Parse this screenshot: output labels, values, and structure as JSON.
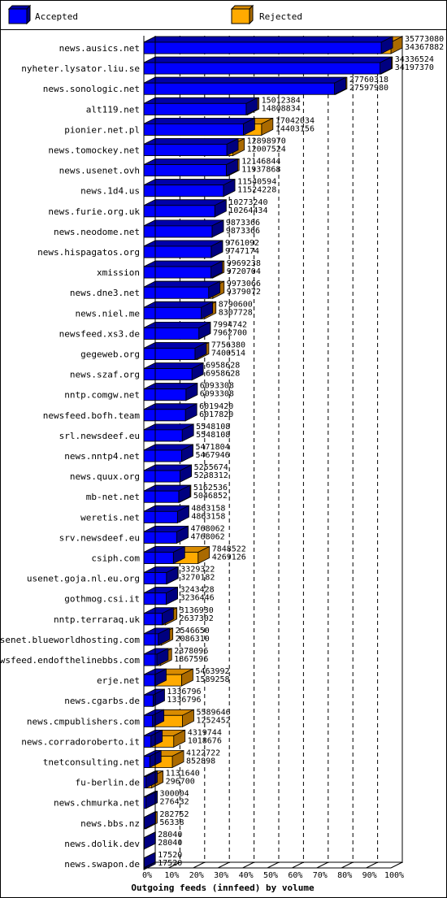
{
  "chart_data": {
    "type": "bar",
    "orientation": "horizontal",
    "stacked": false,
    "overlapping": true,
    "xlabel": "Outgoing feeds (innfeed) by volume",
    "ylabel": "",
    "title": "",
    "x_ticks": [
      "0%",
      "10%",
      "20%",
      "30%",
      "40%",
      "50%",
      "60%",
      "70%",
      "80%",
      "90%",
      "100%"
    ],
    "xlim": [
      0,
      100
    ],
    "grid": true,
    "legend_position": "top",
    "series": [
      {
        "name": "Accepted",
        "color": "#0000ff"
      },
      {
        "name": "Rejected",
        "color": "#ffaa00"
      }
    ],
    "categories": [
      {
        "label": "news.ausics.net",
        "total": "35773080",
        "accepted": "34367882"
      },
      {
        "label": "nyheter.lysator.liu.se",
        "total": "34336524",
        "accepted": "34197370"
      },
      {
        "label": "news.sonologic.net",
        "total": "27760318",
        "accepted": "27597980"
      },
      {
        "label": "alt119.net",
        "total": "15012384",
        "accepted": "14808834"
      },
      {
        "label": "pionier.net.pl",
        "total": "17042034",
        "accepted": "14403156"
      },
      {
        "label": "news.tomockey.net",
        "total": "12898970",
        "accepted": "12007524"
      },
      {
        "label": "news.usenet.ovh",
        "total": "12146844",
        "accepted": "11937868"
      },
      {
        "label": "news.1d4.us",
        "total": "11540594",
        "accepted": "11524228"
      },
      {
        "label": "news.furie.org.uk",
        "total": "10273240",
        "accepted": "10264434"
      },
      {
        "label": "news.neodome.net",
        "total": "9873366",
        "accepted": "9873366"
      },
      {
        "label": "news.hispagatos.org",
        "total": "9761092",
        "accepted": "9747174"
      },
      {
        "label": "xmission",
        "total": "9969238",
        "accepted": "9720704"
      },
      {
        "label": "news.dne3.net",
        "total": "9973066",
        "accepted": "9379072"
      },
      {
        "label": "news.niel.me",
        "total": "8790600",
        "accepted": "8307728"
      },
      {
        "label": "newsfeed.xs3.de",
        "total": "7994742",
        "accepted": "7962700"
      },
      {
        "label": "gegeweb.org",
        "total": "7756380",
        "accepted": "7400514"
      },
      {
        "label": "news.szaf.org",
        "total": "6958628",
        "accepted": "6958628"
      },
      {
        "label": "nntp.comgw.net",
        "total": "6093308",
        "accepted": "6093308"
      },
      {
        "label": "newsfeed.bofh.team",
        "total": "6019420",
        "accepted": "6017820"
      },
      {
        "label": "srl.newsdeef.eu",
        "total": "5548108",
        "accepted": "5548108"
      },
      {
        "label": "news.nntp4.net",
        "total": "5471804",
        "accepted": "5467946"
      },
      {
        "label": "news.quux.org",
        "total": "5255674",
        "accepted": "5238312"
      },
      {
        "label": "mb-net.net",
        "total": "5162536",
        "accepted": "5046852"
      },
      {
        "label": "weretis.net",
        "total": "4863158",
        "accepted": "4863158"
      },
      {
        "label": "srv.newsdeef.eu",
        "total": "4768062",
        "accepted": "4768062"
      },
      {
        "label": "csiph.com",
        "total": "7848522",
        "accepted": "4269126"
      },
      {
        "label": "usenet.goja.nl.eu.org",
        "total": "3329322",
        "accepted": "3270182"
      },
      {
        "label": "gothmog.csi.it",
        "total": "3243428",
        "accepted": "3236446"
      },
      {
        "label": "nntp.terraraq.uk",
        "total": "3136930",
        "accepted": "2637302"
      },
      {
        "label": "usenet.blueworldhosting.com",
        "total": "2546650",
        "accepted": "2086310"
      },
      {
        "label": "newsfeed.endofthelinebbs.com",
        "total": "2378096",
        "accepted": "1867596"
      },
      {
        "label": "erje.net",
        "total": "5463992",
        "accepted": "1589258"
      },
      {
        "label": "news.cgarbs.de",
        "total": "1336796",
        "accepted": "1336796"
      },
      {
        "label": "news.cmpublishers.com",
        "total": "5589646",
        "accepted": "1252452"
      },
      {
        "label": "news.corradoroberto.it",
        "total": "4319744",
        "accepted": "1018676"
      },
      {
        "label": "tnetconsulting.net",
        "total": "4122722",
        "accepted": "852898"
      },
      {
        "label": "fu-berlin.de",
        "total": "1131640",
        "accepted": "296700"
      },
      {
        "label": "news.chmurka.net",
        "total": "300004",
        "accepted": "276432"
      },
      {
        "label": "news.bbs.nz",
        "total": "282752",
        "accepted": "56338"
      },
      {
        "label": "news.dolik.dev",
        "total": "28040",
        "accepted": "28040"
      },
      {
        "label": "news.swapon.de",
        "total": "17520",
        "accepted": "17520"
      }
    ]
  }
}
